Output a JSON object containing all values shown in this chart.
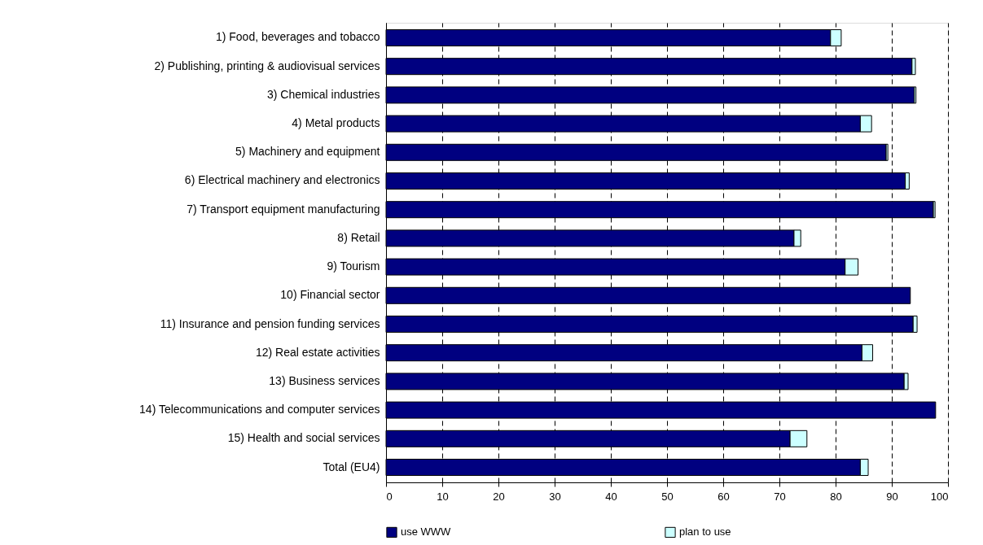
{
  "chart_data": {
    "type": "bar",
    "orientation": "horizontal",
    "stacked": true,
    "categories": [
      "1) Food, beverages and tobacco",
      "2) Publishing, printing & audiovisual services",
      "3) Chemical industries",
      "4) Metal products",
      "5) Machinery and equipment",
      "6) Electrical machinery and electronics",
      "7) Transport equipment manufacturing",
      "8) Retail",
      "9) Tourism",
      "10) Financial sector",
      "11) Insurance and pension funding services",
      "12) Real estate activities",
      "13) Business services",
      "14) Telecommunications and computer services",
      "15) Health and social services",
      "Total (EU4)"
    ],
    "series": [
      {
        "name": "use WWW",
        "color": "#000080",
        "values": [
          79.1,
          93.6,
          94.0,
          84.4,
          89.0,
          92.4,
          97.4,
          72.6,
          81.7,
          93.3,
          93.8,
          84.7,
          92.2,
          97.8,
          71.9,
          84.4
        ]
      },
      {
        "name": "plan to use",
        "color": "#ccffff",
        "values": [
          1.9,
          0.6,
          0.3,
          2.0,
          0.3,
          0.7,
          0.3,
          1.2,
          2.3,
          null,
          0.7,
          1.9,
          0.7,
          null,
          3.0,
          1.4
        ]
      }
    ],
    "xlim": [
      0,
      100
    ],
    "xticks": [
      0,
      10,
      20,
      30,
      40,
      50,
      60,
      70,
      80,
      90,
      100
    ],
    "grid": "x",
    "legend": "bottom"
  }
}
